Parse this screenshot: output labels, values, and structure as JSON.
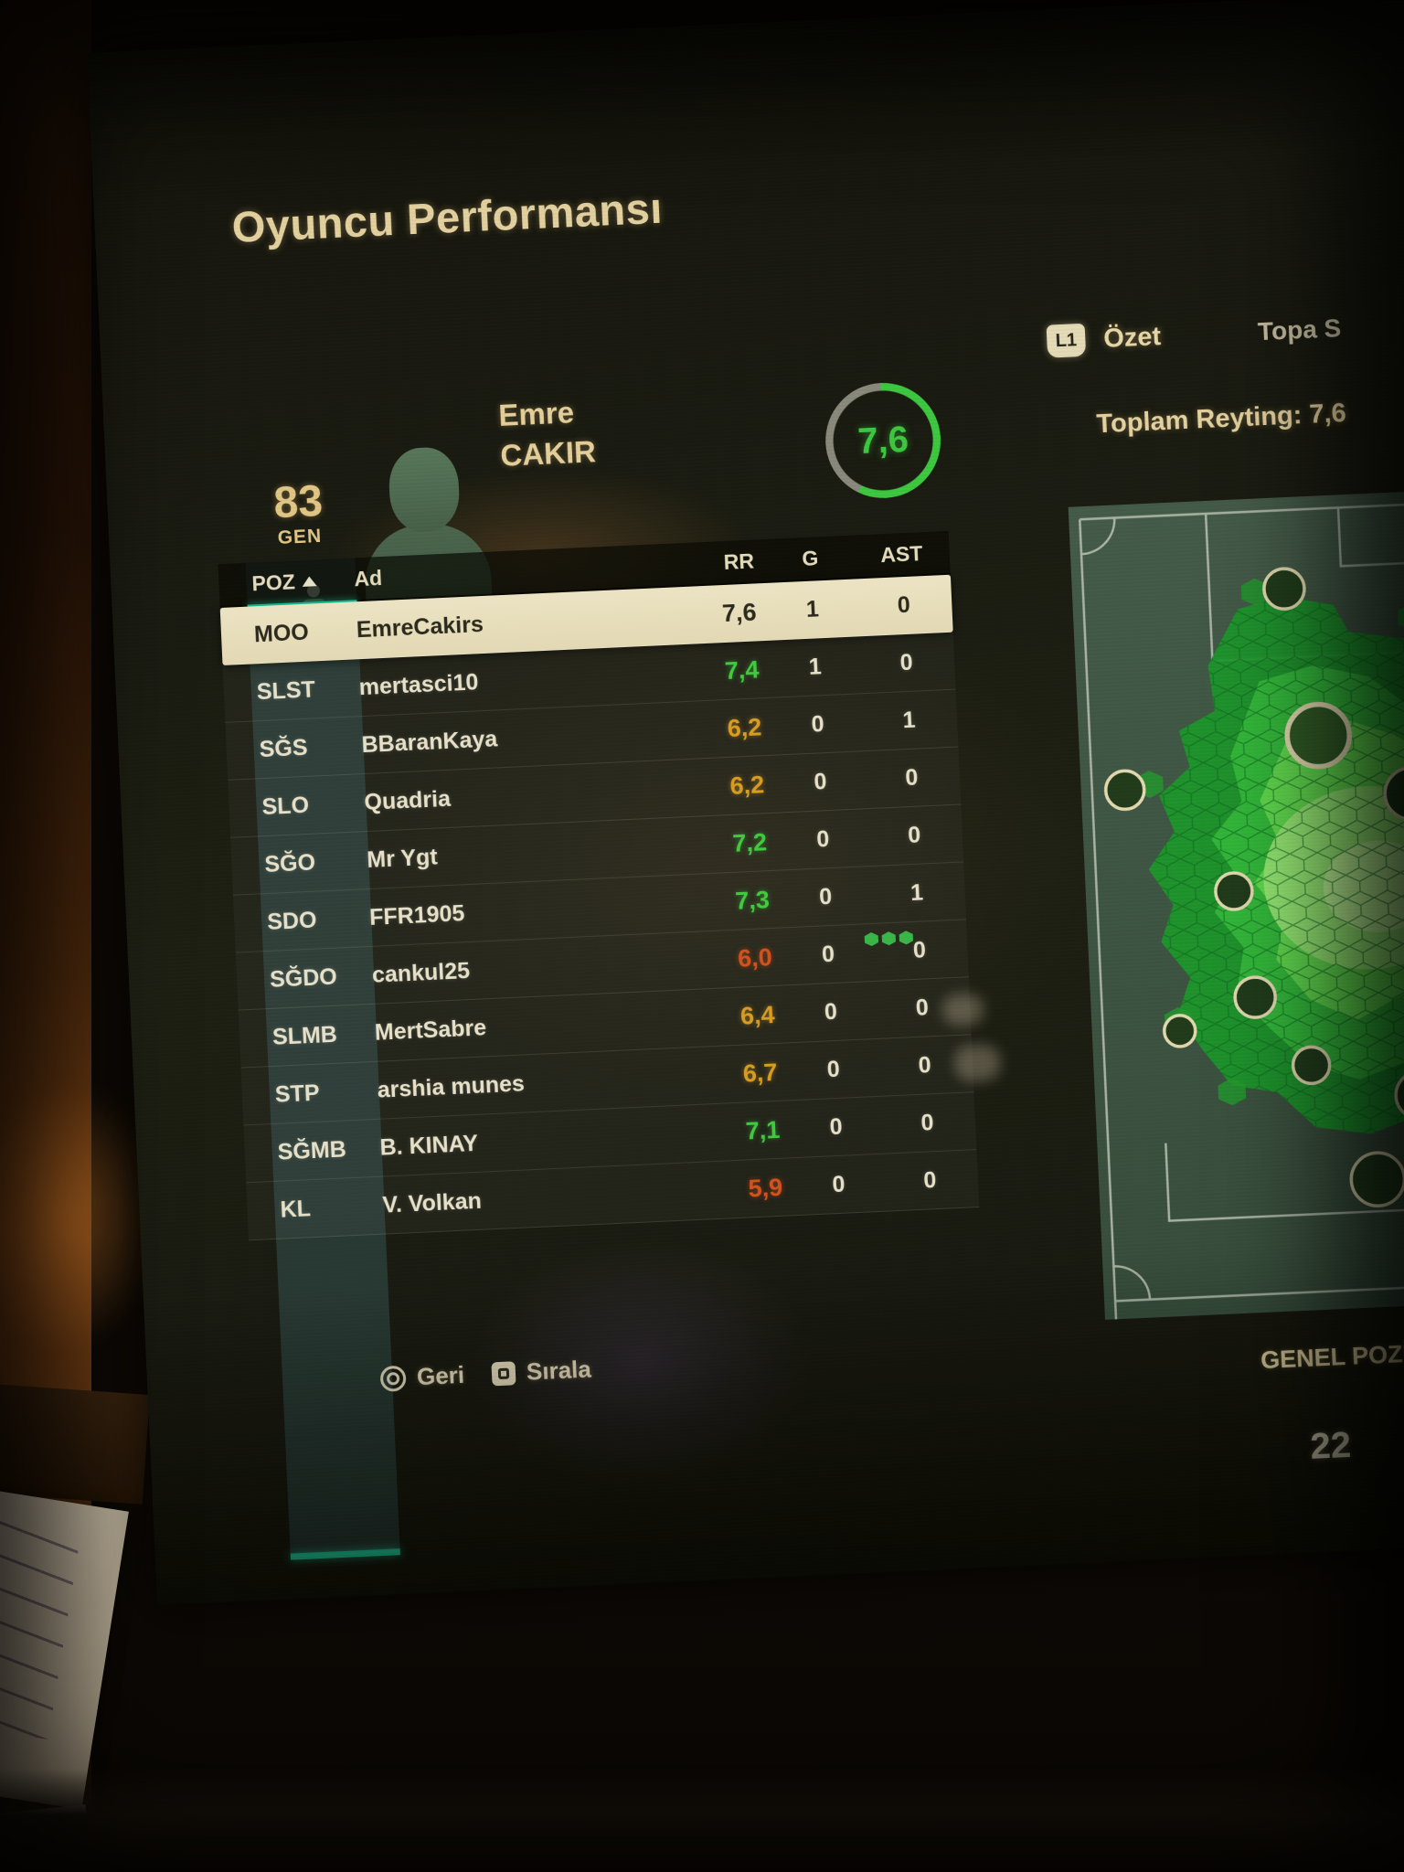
{
  "screen": {
    "title": "Oyuncu Performansı",
    "player": {
      "overall": "83",
      "overall_label": "GEN",
      "first_name": "Emre",
      "last_name": "CAKIR",
      "match_rating": "7,6"
    },
    "tabs": {
      "shoulder_button": "L1",
      "active": "Özet",
      "next_partial": "Topa S"
    },
    "summary": {
      "total_rating_label": "Toplam Reyting:",
      "total_rating_value": "7,6"
    },
    "table": {
      "headers": {
        "poz": "POZ",
        "ad": "Ad",
        "rr": "RR",
        "g": "G",
        "ast": "AST"
      },
      "rows": [
        {
          "poz": "MOO",
          "ad": "EmreCakirs",
          "rr": "7,6",
          "g": "1",
          "ast": "0",
          "selected": true,
          "rr_color": "dark"
        },
        {
          "poz": "SLST",
          "ad": "mertasci10",
          "rr": "7,4",
          "g": "1",
          "ast": "0",
          "selected": false,
          "rr_color": "green"
        },
        {
          "poz": "SĞS",
          "ad": "BBaranKaya",
          "rr": "6,2",
          "g": "0",
          "ast": "1",
          "selected": false,
          "rr_color": "yellow"
        },
        {
          "poz": "SLO",
          "ad": "Quadria",
          "rr": "6,2",
          "g": "0",
          "ast": "0",
          "selected": false,
          "rr_color": "yellow"
        },
        {
          "poz": "SĞO",
          "ad": "Mr Ygt",
          "rr": "7,2",
          "g": "0",
          "ast": "0",
          "selected": false,
          "rr_color": "green"
        },
        {
          "poz": "SDO",
          "ad": "FFR1905",
          "rr": "7,3",
          "g": "0",
          "ast": "1",
          "selected": false,
          "rr_color": "green"
        },
        {
          "poz": "SĞDO",
          "ad": "cankul25",
          "rr": "6,0",
          "g": "0",
          "ast": "0",
          "selected": false,
          "rr_color": "red"
        },
        {
          "poz": "SLMB",
          "ad": "MertSabre",
          "rr": "6,4",
          "g": "0",
          "ast": "0",
          "selected": false,
          "rr_color": "yellow"
        },
        {
          "poz": "STP",
          "ad": "arshia munes",
          "rr": "6,7",
          "g": "0",
          "ast": "0",
          "selected": false,
          "rr_color": "yellow"
        },
        {
          "poz": "SĞMB",
          "ad": "B. KINAY",
          "rr": "7,1",
          "g": "0",
          "ast": "0",
          "selected": false,
          "rr_color": "green"
        },
        {
          "poz": "KL",
          "ad": "V. Volkan",
          "rr": "5,9",
          "g": "0",
          "ast": "0",
          "selected": false,
          "rr_color": "red"
        }
      ]
    },
    "pitch": {
      "caption": "GENEL POZİS",
      "stat_value": "22"
    },
    "footer": {
      "back_label": "Geri",
      "sort_label": "Sırala"
    }
  },
  "colors": {
    "accent_teal": "#17dfa8",
    "rating_green": "#3fd53f",
    "rating_yellow": "#e2a31f",
    "rating_red": "#e0541c",
    "cream_text": "#f0dca6",
    "heat_bright": "#c6ff9e"
  }
}
